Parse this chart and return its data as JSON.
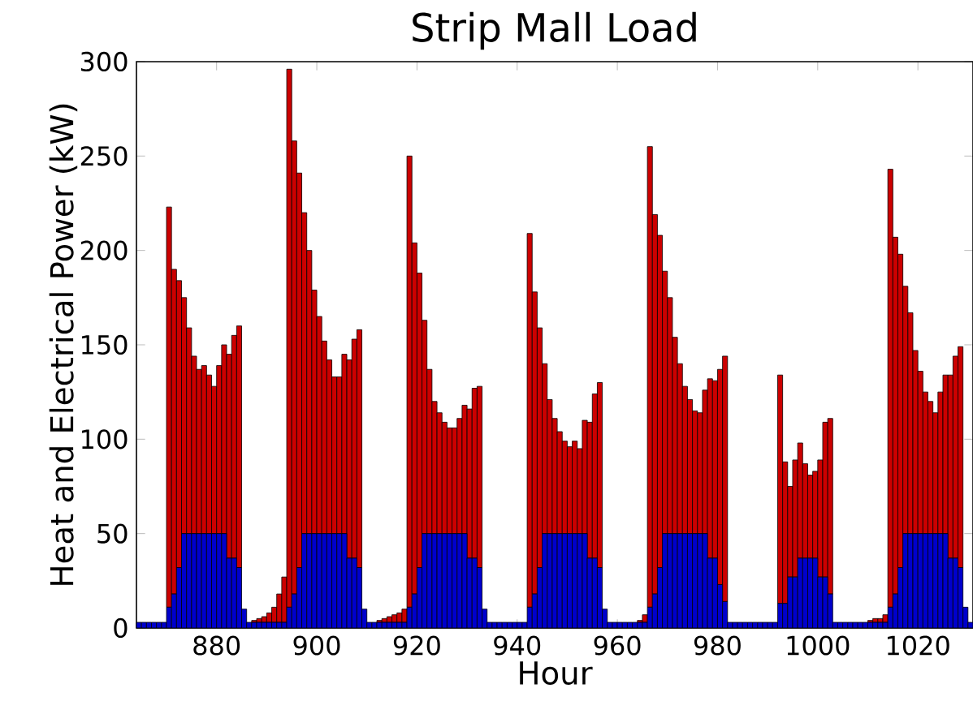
{
  "chart_data": {
    "type": "bar",
    "title": "Strip Mall Load",
    "xlabel": "Hour",
    "ylabel": "Heat and Electrical Power (kW)",
    "stacked": true,
    "x": [
      864,
      865,
      866,
      867,
      868,
      869,
      870,
      871,
      872,
      873,
      874,
      875,
      876,
      877,
      878,
      879,
      880,
      881,
      882,
      883,
      884,
      885,
      886,
      887,
      888,
      889,
      890,
      891,
      892,
      893,
      894,
      895,
      896,
      897,
      898,
      899,
      900,
      901,
      902,
      903,
      904,
      905,
      906,
      907,
      908,
      909,
      910,
      911,
      912,
      913,
      914,
      915,
      916,
      917,
      918,
      919,
      920,
      921,
      922,
      923,
      924,
      925,
      926,
      927,
      928,
      929,
      930,
      931,
      932,
      933,
      934,
      935,
      936,
      937,
      938,
      939,
      940,
      941,
      942,
      943,
      944,
      945,
      946,
      947,
      948,
      949,
      950,
      951,
      952,
      953,
      954,
      955,
      956,
      957,
      958,
      959,
      960,
      961,
      962,
      963,
      964,
      965,
      966,
      967,
      968,
      969,
      970,
      971,
      972,
      973,
      974,
      975,
      976,
      977,
      978,
      979,
      980,
      981,
      982,
      983,
      984,
      985,
      986,
      987,
      988,
      989,
      990,
      991,
      992,
      993,
      994,
      995,
      996,
      997,
      998,
      999,
      1000,
      1001,
      1002,
      1003,
      1004,
      1005,
      1006,
      1007,
      1008,
      1009,
      1010,
      1011,
      1012,
      1013,
      1014,
      1015,
      1016,
      1017,
      1018,
      1019,
      1020,
      1021,
      1022,
      1023,
      1024,
      1025,
      1026,
      1027,
      1028,
      1029,
      1030
    ],
    "series": [
      {
        "color": "#0000cc",
        "values": [
          3,
          3,
          3,
          3,
          3,
          3,
          11,
          18,
          32,
          50,
          50,
          50,
          50,
          50,
          50,
          50,
          50,
          50,
          37,
          37,
          32,
          10,
          3,
          3,
          3,
          3,
          3,
          3,
          3,
          3,
          11,
          18,
          32,
          50,
          50,
          50,
          50,
          50,
          50,
          50,
          50,
          50,
          37,
          37,
          32,
          10,
          3,
          3,
          3,
          3,
          3,
          3,
          3,
          3,
          11,
          18,
          32,
          50,
          50,
          50,
          50,
          50,
          50,
          50,
          50,
          50,
          37,
          37,
          32,
          10,
          3,
          3,
          3,
          3,
          3,
          3,
          3,
          3,
          11,
          18,
          32,
          50,
          50,
          50,
          50,
          50,
          50,
          50,
          50,
          50,
          37,
          37,
          32,
          10,
          3,
          3,
          3,
          3,
          3,
          3,
          3,
          3,
          11,
          18,
          32,
          50,
          50,
          50,
          50,
          50,
          50,
          50,
          50,
          50,
          37,
          37,
          23,
          14,
          3,
          3,
          3,
          3,
          3,
          3,
          3,
          3,
          3,
          3,
          13,
          13,
          27,
          27,
          37,
          37,
          37,
          37,
          27,
          27,
          18,
          3,
          3,
          3,
          3,
          3,
          3,
          3,
          3,
          3,
          3,
          3,
          11,
          18,
          32,
          50,
          50,
          50,
          50,
          50,
          50,
          50,
          50,
          50,
          37,
          37,
          32,
          11,
          3
        ]
      },
      {
        "color": "#cc0000",
        "values": [
          0,
          0,
          0,
          0,
          0,
          0,
          212,
          172,
          152,
          125,
          109,
          94,
          87,
          89,
          84,
          78,
          89,
          100,
          108,
          118,
          128,
          0,
          0,
          1,
          2,
          3,
          5,
          8,
          15,
          24,
          285,
          240,
          209,
          170,
          150,
          129,
          115,
          102,
          92,
          83,
          83,
          95,
          105,
          116,
          126,
          0,
          0,
          0,
          1,
          2,
          3,
          4,
          5,
          7,
          239,
          186,
          156,
          113,
          87,
          70,
          64,
          59,
          56,
          56,
          61,
          68,
          79,
          90,
          96,
          0,
          0,
          0,
          0,
          0,
          0,
          0,
          0,
          0,
          198,
          160,
          127,
          90,
          71,
          61,
          54,
          49,
          46,
          49,
          45,
          60,
          72,
          87,
          98,
          0,
          0,
          0,
          0,
          0,
          0,
          0,
          1,
          4,
          244,
          201,
          176,
          139,
          125,
          104,
          90,
          78,
          71,
          65,
          64,
          76,
          95,
          94,
          114,
          130,
          0,
          0,
          0,
          0,
          0,
          0,
          0,
          0,
          0,
          0,
          121,
          75,
          48,
          62,
          61,
          50,
          44,
          46,
          62,
          82,
          93,
          0,
          0,
          0,
          0,
          0,
          0,
          0,
          1,
          2,
          2,
          4,
          232,
          189,
          166,
          131,
          117,
          97,
          86,
          75,
          70,
          64,
          75,
          84,
          97,
          107,
          117,
          0,
          0
        ]
      }
    ],
    "xlim": [
      864,
      1031
    ],
    "ylim": [
      0,
      300
    ],
    "xticks": [
      880,
      900,
      920,
      940,
      960,
      980,
      1000,
      1020
    ],
    "yticks": [
      0,
      50,
      100,
      150,
      200,
      250,
      300
    ]
  }
}
